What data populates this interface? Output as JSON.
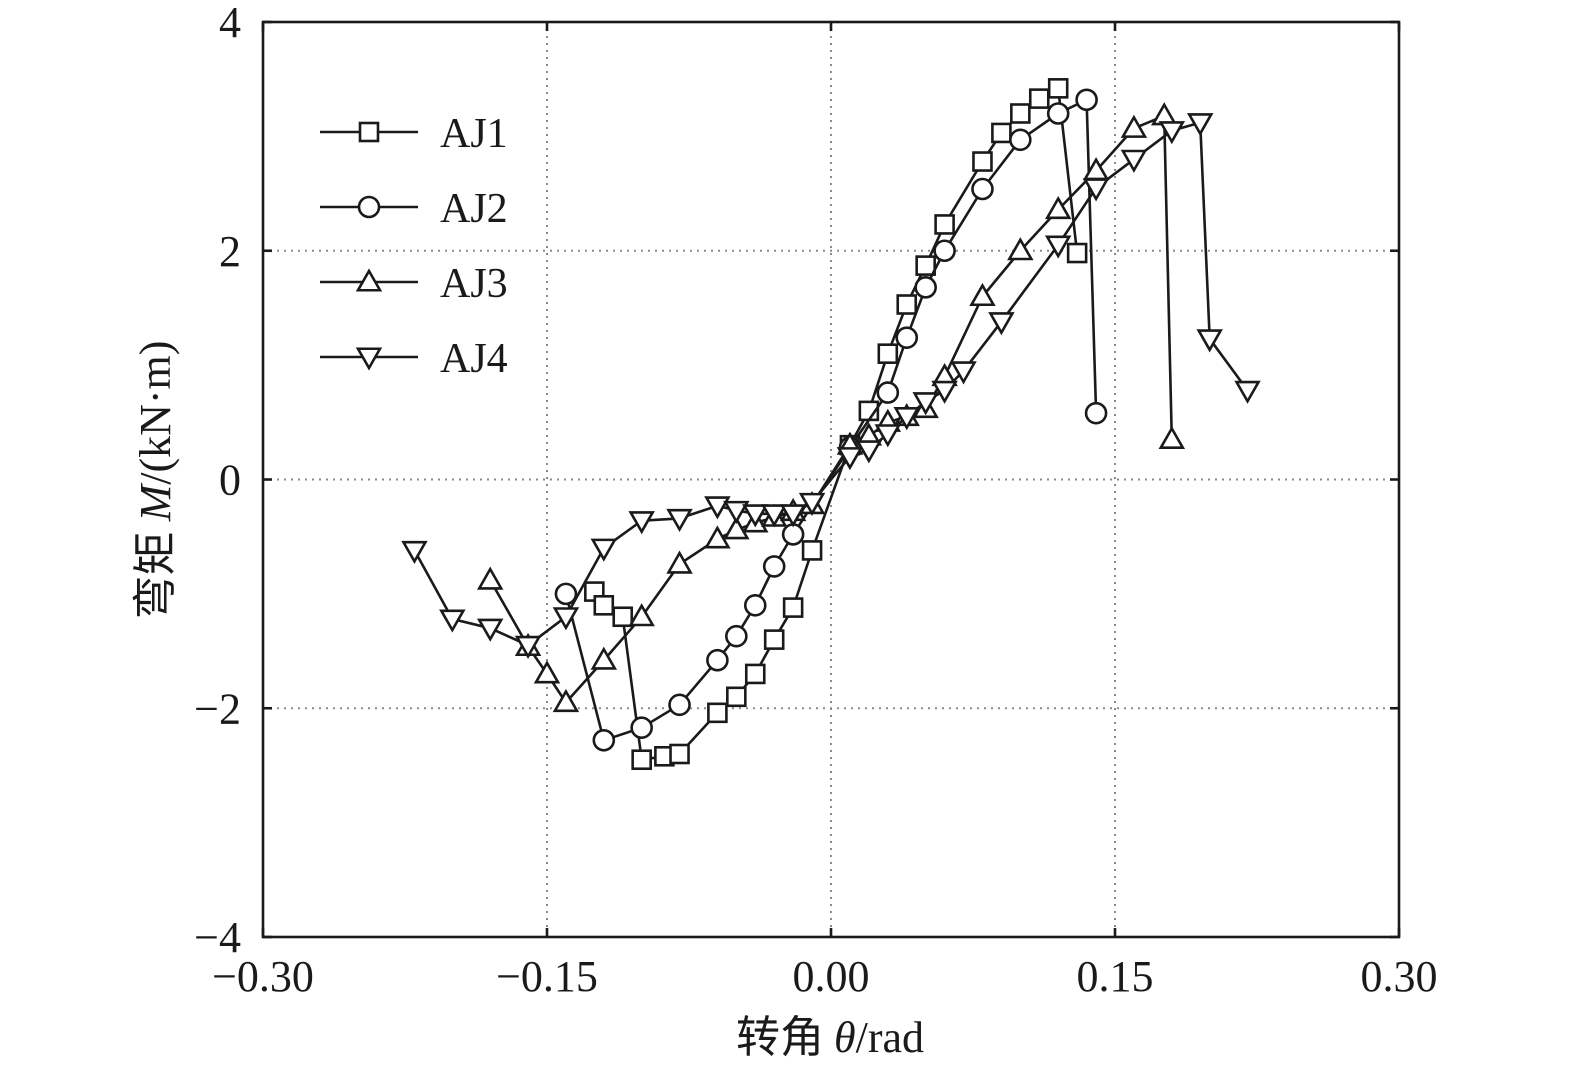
{
  "chart_data": {
    "type": "line",
    "xlabel_cjk": "转角",
    "xlabel_var": "θ",
    "xlabel_unit": "/rad",
    "ylabel_cjk": "弯矩",
    "ylabel_var": "M",
    "ylabel_unit": "/(kN·m)",
    "xlim": [
      -0.3,
      0.3
    ],
    "ylim": [
      -4,
      4
    ],
    "xticks": [
      -0.3,
      -0.15,
      0.0,
      0.15,
      0.3
    ],
    "xtick_labels": [
      "−0.30",
      "−0.15",
      "0.00",
      "0.15",
      "0.30"
    ],
    "yticks": [
      -4,
      -2,
      0,
      2,
      4
    ],
    "ytick_labels": [
      "−4",
      "−2",
      "0",
      "2",
      "4"
    ],
    "grid": "dotted at inner ticks",
    "legend_position": "top-left",
    "series": [
      {
        "name": "AJ1",
        "marker": "square",
        "points": [
          [
            -0.125,
            -0.98
          ],
          [
            -0.12,
            -1.1
          ],
          [
            -0.11,
            -1.2
          ],
          [
            -0.1,
            -2.45
          ],
          [
            -0.088,
            -2.42
          ],
          [
            -0.08,
            -2.4
          ],
          [
            -0.06,
            -2.04
          ],
          [
            -0.05,
            -1.9
          ],
          [
            -0.04,
            -1.7
          ],
          [
            -0.03,
            -1.4
          ],
          [
            -0.02,
            -1.12
          ],
          [
            -0.01,
            -0.62
          ],
          [
            0.01,
            0.3
          ],
          [
            0.02,
            0.6
          ],
          [
            0.03,
            1.1
          ],
          [
            0.04,
            1.53
          ],
          [
            0.05,
            1.87
          ],
          [
            0.06,
            2.23
          ],
          [
            0.08,
            2.78
          ],
          [
            0.09,
            3.03
          ],
          [
            0.1,
            3.2
          ],
          [
            0.11,
            3.33
          ],
          [
            0.12,
            3.42
          ],
          [
            0.13,
            1.98
          ]
        ]
      },
      {
        "name": "AJ2",
        "marker": "circle",
        "points": [
          [
            -0.14,
            -1.0
          ],
          [
            -0.12,
            -2.28
          ],
          [
            -0.1,
            -2.17
          ],
          [
            -0.08,
            -1.97
          ],
          [
            -0.06,
            -1.58
          ],
          [
            -0.05,
            -1.37
          ],
          [
            -0.04,
            -1.1
          ],
          [
            -0.03,
            -0.76
          ],
          [
            -0.02,
            -0.48
          ],
          [
            0.01,
            0.28
          ],
          [
            0.03,
            0.76
          ],
          [
            0.04,
            1.24
          ],
          [
            0.05,
            1.68
          ],
          [
            0.06,
            2.0
          ],
          [
            0.08,
            2.54
          ],
          [
            0.1,
            2.97
          ],
          [
            0.12,
            3.2
          ],
          [
            0.135,
            3.32
          ],
          [
            0.14,
            0.58
          ]
        ]
      },
      {
        "name": "AJ3",
        "marker": "triangle-up",
        "points": [
          [
            -0.18,
            -0.88
          ],
          [
            -0.16,
            -1.46
          ],
          [
            -0.15,
            -1.7
          ],
          [
            -0.14,
            -1.95
          ],
          [
            -0.12,
            -1.58
          ],
          [
            -0.1,
            -1.2
          ],
          [
            -0.08,
            -0.74
          ],
          [
            -0.06,
            -0.52
          ],
          [
            -0.05,
            -0.44
          ],
          [
            -0.04,
            -0.38
          ],
          [
            -0.03,
            -0.33
          ],
          [
            -0.02,
            -0.28
          ],
          [
            -0.01,
            -0.22
          ],
          [
            0.01,
            0.3
          ],
          [
            0.02,
            0.38
          ],
          [
            0.03,
            0.5
          ],
          [
            0.04,
            0.55
          ],
          [
            0.05,
            0.62
          ],
          [
            0.06,
            0.9
          ],
          [
            0.08,
            1.6
          ],
          [
            0.1,
            2.0
          ],
          [
            0.12,
            2.36
          ],
          [
            0.14,
            2.7
          ],
          [
            0.16,
            3.07
          ],
          [
            0.176,
            3.18
          ],
          [
            0.18,
            0.35
          ]
        ]
      },
      {
        "name": "AJ4",
        "marker": "triangle-down",
        "points": [
          [
            -0.22,
            -0.62
          ],
          [
            -0.2,
            -1.22
          ],
          [
            -0.18,
            -1.3
          ],
          [
            -0.16,
            -1.45
          ],
          [
            -0.14,
            -1.2
          ],
          [
            -0.12,
            -0.6
          ],
          [
            -0.1,
            -0.36
          ],
          [
            -0.08,
            -0.34
          ],
          [
            -0.06,
            -0.23
          ],
          [
            -0.05,
            -0.27
          ],
          [
            -0.04,
            -0.3
          ],
          [
            -0.03,
            -0.3
          ],
          [
            -0.02,
            -0.3
          ],
          [
            -0.01,
            -0.2
          ],
          [
            0.01,
            0.2
          ],
          [
            0.02,
            0.26
          ],
          [
            0.03,
            0.4
          ],
          [
            0.04,
            0.55
          ],
          [
            0.05,
            0.68
          ],
          [
            0.06,
            0.78
          ],
          [
            0.07,
            0.95
          ],
          [
            0.09,
            1.38
          ],
          [
            0.12,
            2.05
          ],
          [
            0.14,
            2.55
          ],
          [
            0.16,
            2.8
          ],
          [
            0.18,
            3.05
          ],
          [
            0.195,
            3.12
          ],
          [
            0.2,
            1.23
          ],
          [
            0.22,
            0.78
          ]
        ]
      }
    ]
  }
}
